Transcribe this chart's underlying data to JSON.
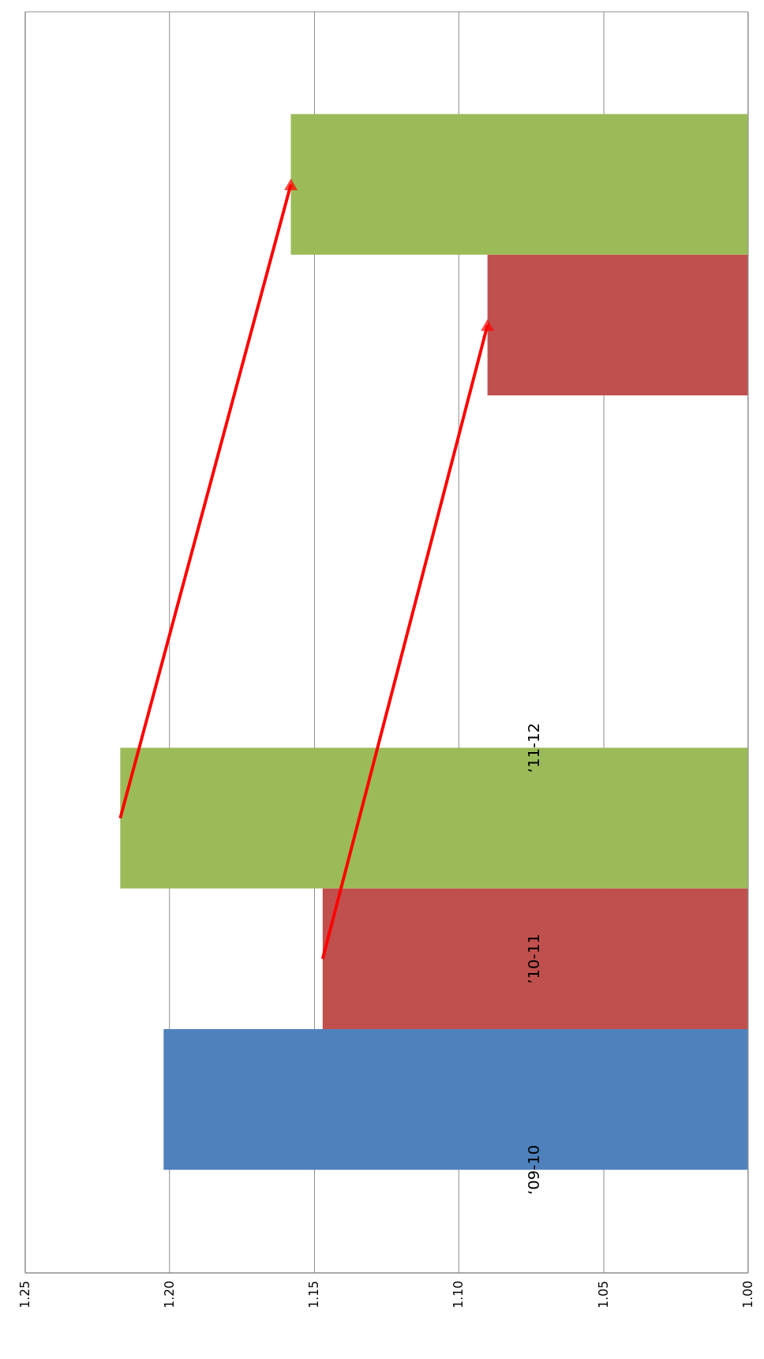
{
  "chart_data": {
    "type": "bar",
    "orientation": "horizontal",
    "categories": [
      null,
      null
    ],
    "series": [
      {
        "name": "‘11-12",
        "color": "#9bbb59",
        "values": [
          1.158,
          1.217
        ]
      },
      {
        "name": "’10-11",
        "color": "#c0504d",
        "values": [
          1.09,
          1.147
        ]
      },
      {
        "name": "‘09-10",
        "color": "#4f81bd",
        "values": [
          null,
          1.202
        ]
      }
    ],
    "xlim": [
      1.25,
      1.0
    ],
    "xticks": [
      1.25,
      {
        "value": 1.2,
        "label": "1.20"
      },
      1.15,
      {
        "value": 1.1,
        "label": "1.10"
      },
      1.05,
      {
        "value": 1.0,
        "label": "1.00"
      }
    ],
    "grid": "x",
    "legend": false,
    "tick_labels": "x"
  }
}
